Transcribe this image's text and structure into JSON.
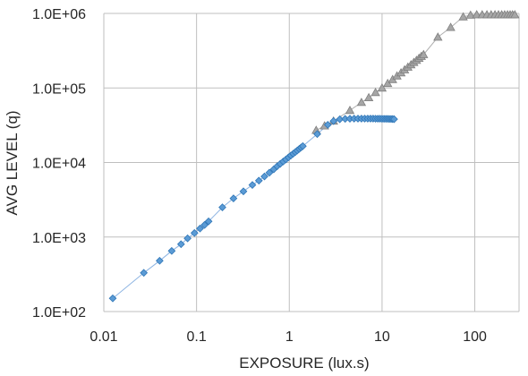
{
  "chart_data": {
    "type": "scatter",
    "title": "",
    "xlabel": "EXPOSURE (lux.s)",
    "ylabel": "AVG LEVEL (q)",
    "x_scale": "log",
    "y_scale": "log",
    "xlim": [
      0.01,
      300
    ],
    "ylim": [
      100,
      1000000
    ],
    "x_tick_values": [
      0.01,
      0.1,
      1,
      10,
      100
    ],
    "x_tick_labels": [
      "0.01",
      "0.1",
      "1",
      "10",
      "100"
    ],
    "y_tick_values": [
      100,
      1000,
      10000,
      100000,
      1000000
    ],
    "y_tick_labels": [
      "1.0E+02",
      "1.0E+03",
      "1.0E+04",
      "1.0E+05",
      "1.0E+06"
    ],
    "grid": {
      "x_major": true,
      "y_major": true
    },
    "legend": "none",
    "series": [
      {
        "marker": "triangle",
        "color": "#a6a6a6",
        "points": [
          [
            1.95,
            27000
          ],
          [
            2.4,
            31000
          ],
          [
            3.0,
            36000
          ],
          [
            4.5,
            50000
          ],
          [
            6.0,
            64000
          ],
          [
            7.2,
            74000
          ],
          [
            8.5,
            87000
          ],
          [
            10.0,
            100000
          ],
          [
            11.5,
            115000
          ],
          [
            13.0,
            130000
          ],
          [
            14.5,
            145000
          ],
          [
            16.0,
            160000
          ],
          [
            17.5,
            175000
          ],
          [
            19.0,
            190000
          ],
          [
            20.5,
            205000
          ],
          [
            22.0,
            220000
          ],
          [
            23.5,
            235000
          ],
          [
            25.0,
            250000
          ],
          [
            26.5,
            265000
          ],
          [
            28.0,
            280000
          ],
          [
            40,
            480000
          ],
          [
            55,
            650000
          ],
          [
            75,
            900000
          ],
          [
            90,
            950000
          ],
          [
            105,
            960000
          ],
          [
            120,
            960000
          ],
          [
            135,
            960000
          ],
          [
            150,
            960000
          ],
          [
            165,
            960000
          ],
          [
            180,
            960000
          ],
          [
            195,
            960000
          ],
          [
            210,
            960000
          ],
          [
            225,
            960000
          ],
          [
            240,
            960000
          ],
          [
            255,
            960000
          ],
          [
            270,
            960000
          ]
        ]
      },
      {
        "marker": "diamond",
        "color": "#5b9bd5",
        "points": [
          [
            0.0125,
            150
          ],
          [
            0.027,
            330
          ],
          [
            0.04,
            480
          ],
          [
            0.054,
            650
          ],
          [
            0.068,
            800
          ],
          [
            0.08,
            960
          ],
          [
            0.095,
            1130
          ],
          [
            0.109,
            1300
          ],
          [
            0.122,
            1450
          ],
          [
            0.135,
            1620
          ],
          [
            0.19,
            2500
          ],
          [
            0.25,
            3300
          ],
          [
            0.32,
            4100
          ],
          [
            0.4,
            5000
          ],
          [
            0.47,
            5700
          ],
          [
            0.54,
            6500
          ],
          [
            0.61,
            7300
          ],
          [
            0.68,
            8100
          ],
          [
            0.74,
            8900
          ],
          [
            0.8,
            9600
          ],
          [
            0.86,
            10300
          ],
          [
            0.92,
            11000
          ],
          [
            0.98,
            11700
          ],
          [
            1.04,
            12400
          ],
          [
            1.1,
            13100
          ],
          [
            1.16,
            13800
          ],
          [
            1.22,
            14500
          ],
          [
            1.28,
            15200
          ],
          [
            1.34,
            15900
          ],
          [
            1.4,
            16600
          ],
          [
            2.0,
            24000
          ],
          [
            2.6,
            32000
          ],
          [
            3.0,
            36000
          ],
          [
            3.5,
            38000
          ],
          [
            4.0,
            38500
          ],
          [
            4.5,
            38700
          ],
          [
            5.0,
            38800
          ],
          [
            5.5,
            38800
          ],
          [
            6.0,
            38800
          ],
          [
            6.5,
            38800
          ],
          [
            7.0,
            38800
          ],
          [
            7.5,
            38800
          ],
          [
            8.0,
            38800
          ],
          [
            8.5,
            38700
          ],
          [
            9.0,
            38700
          ],
          [
            9.5,
            38700
          ],
          [
            10.0,
            38600
          ],
          [
            10.5,
            38600
          ],
          [
            11.0,
            38500
          ],
          [
            11.5,
            38500
          ],
          [
            12.0,
            38400
          ],
          [
            12.5,
            38300
          ],
          [
            13.0,
            38200
          ],
          [
            13.5,
            38100
          ]
        ]
      }
    ]
  }
}
